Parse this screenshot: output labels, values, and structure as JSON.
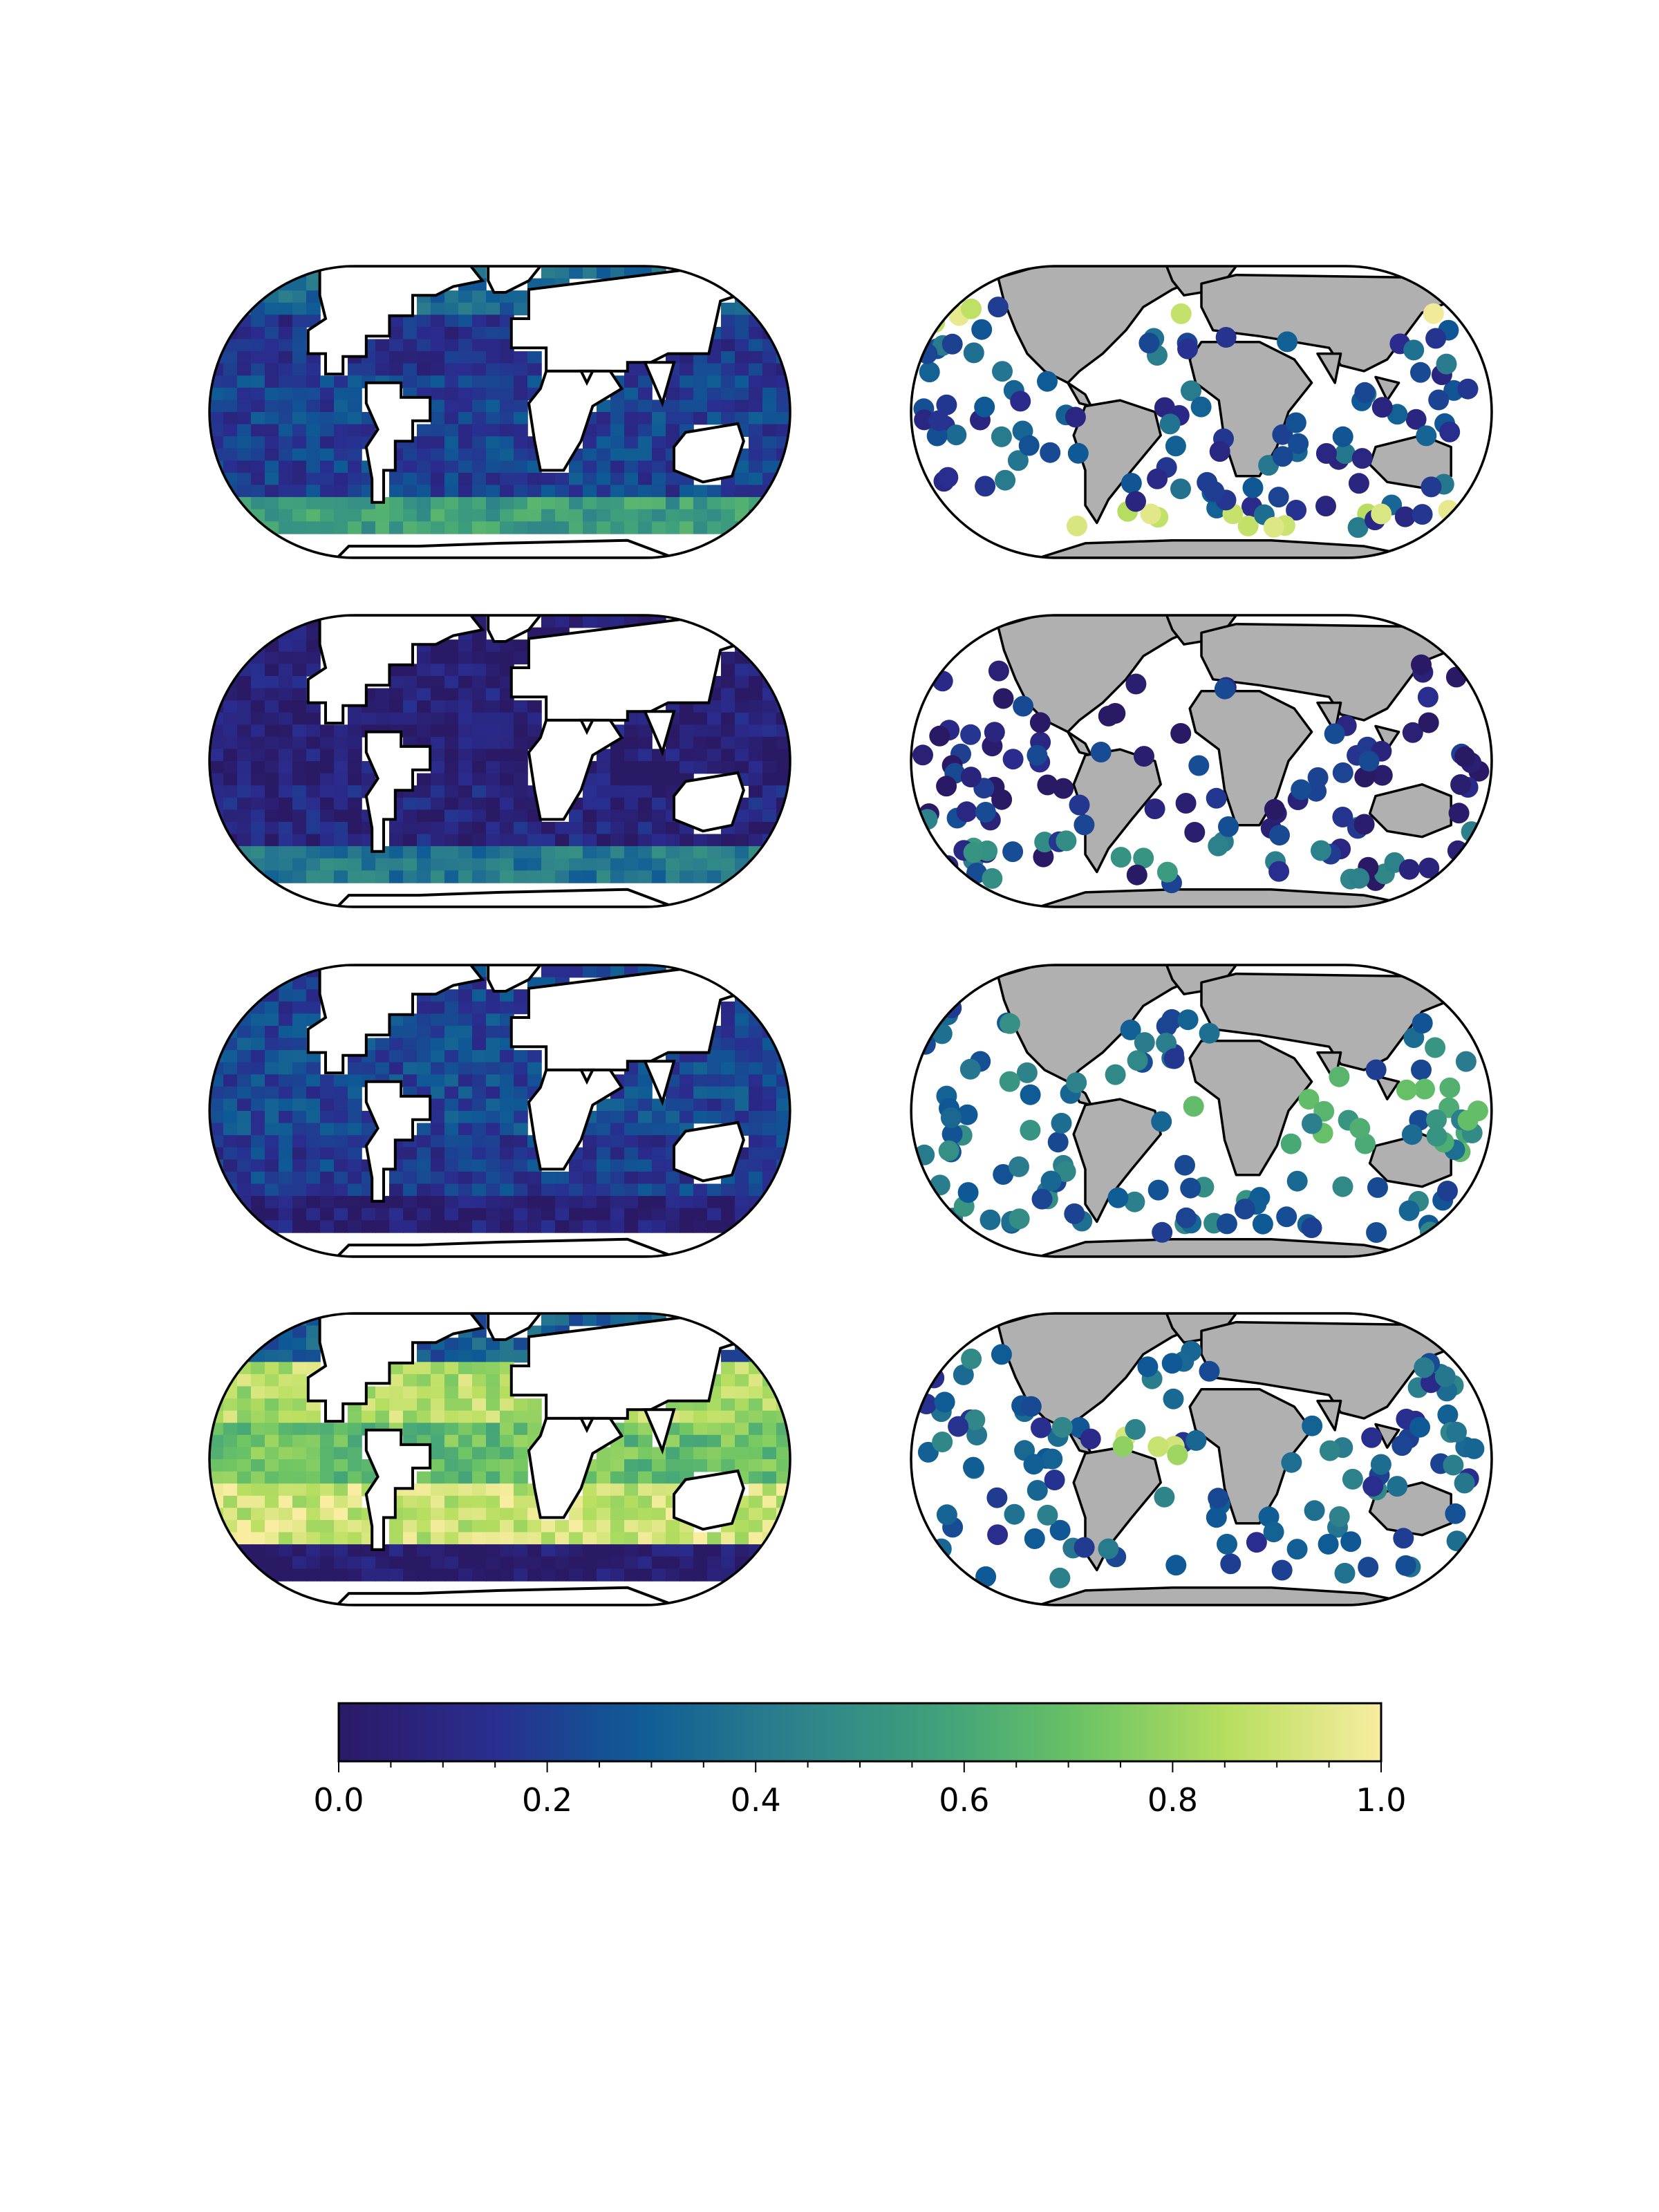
{
  "figure": {
    "colormap": "YlGnBu_r",
    "colormap_stops": [
      "#2a1a66",
      "#2a2c8e",
      "#0e5a96",
      "#2c7f8c",
      "#3ea07c",
      "#6cc464",
      "#b9df60",
      "#f8eda0"
    ],
    "land_color": "#b0b0b0",
    "coast_color": "#000000"
  },
  "chart_data": [
    {
      "type": "heatmap",
      "row": 1,
      "column": "left",
      "mean_level": 0.25,
      "band_levels": {
        "north": 0.35,
        "north_subtropics": 0.15,
        "tropics": 0.2,
        "south_subtropics": 0.2,
        "southern_ocean": 0.55
      }
    },
    {
      "type": "scatter",
      "row": 1,
      "column": "right",
      "mean_level": 0.25,
      "high_points_region": "arctic and southern ocean"
    },
    {
      "type": "heatmap",
      "row": 2,
      "column": "left",
      "mean_level": 0.08,
      "band_levels": {
        "north": 0.05,
        "north_subtropics": 0.05,
        "tropics": 0.05,
        "south_subtropics": 0.08,
        "southern_ocean": 0.4
      }
    },
    {
      "type": "scatter",
      "row": 2,
      "column": "right",
      "mean_level": 0.08,
      "high_points_region": "southern ocean"
    },
    {
      "type": "heatmap",
      "row": 3,
      "column": "left",
      "mean_level": 0.2,
      "band_levels": {
        "north": 0.2,
        "north_subtropics": 0.22,
        "tropics": 0.22,
        "south_subtropics": 0.18,
        "southern_ocean": 0.05
      }
    },
    {
      "type": "scatter",
      "row": 3,
      "column": "right",
      "mean_level": 0.35,
      "high_points_region": "tropics and indian ocean"
    },
    {
      "type": "heatmap",
      "row": 4,
      "column": "left",
      "mean_level": 0.6,
      "band_levels": {
        "north": 0.3,
        "north_subtropics": 0.85,
        "tropics": 0.7,
        "south_subtropics": 0.9,
        "southern_ocean": 0.02
      }
    },
    {
      "type": "scatter",
      "row": 4,
      "column": "right",
      "mean_level": 0.3,
      "high_points_region": "tropical atlantic"
    },
    {
      "type": "colorbar",
      "orientation": "horizontal",
      "range": [
        0.0,
        1.0
      ],
      "ticks": [
        "0.0",
        "0.2",
        "0.4",
        "0.6",
        "0.8",
        "1.0"
      ]
    }
  ],
  "colorbar": {
    "ticks": [
      "0.0",
      "0.2",
      "0.4",
      "0.6",
      "0.8",
      "1.0"
    ]
  }
}
